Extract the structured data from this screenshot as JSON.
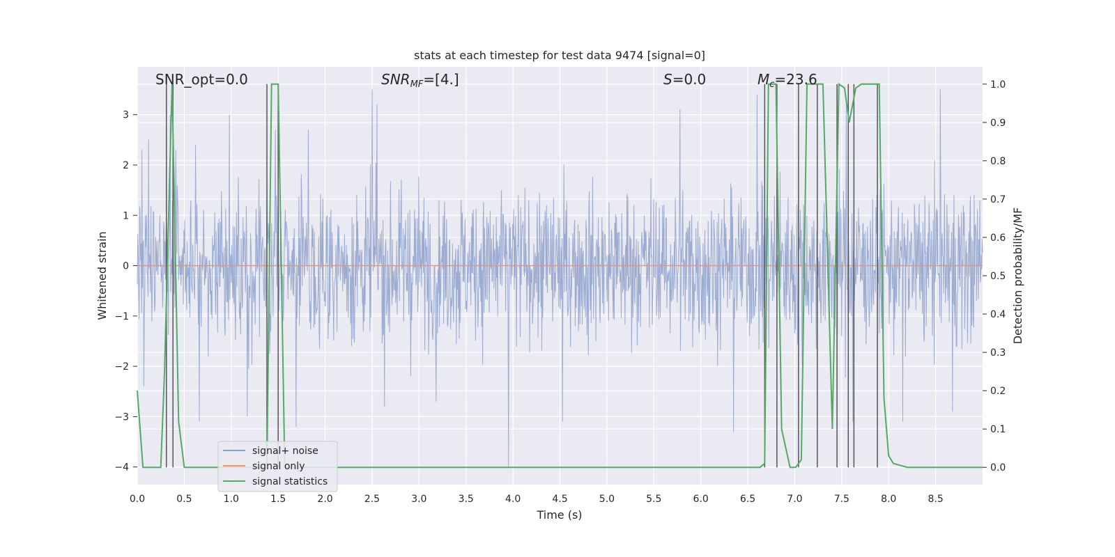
{
  "chart_data": {
    "type": "line",
    "title": "stats at each timestep for test data 9474 [signal=0]",
    "xlabel": "Time (s)",
    "ylabel_left": "Whitened strain",
    "ylabel_right": "Detection probability/MF",
    "xlim": [
      0.0,
      9.0
    ],
    "ylim_left": [
      -4.35,
      3.95
    ],
    "ylim_right": [
      -0.045,
      1.045
    ],
    "xticks": [
      "0.0",
      "0.5",
      "1.0",
      "1.5",
      "2.0",
      "2.5",
      "3.0",
      "3.5",
      "4.0",
      "4.5",
      "5.0",
      "5.5",
      "6.0",
      "6.5",
      "7.0",
      "7.5",
      "8.0",
      "8.5"
    ],
    "yticks_left": [
      "3",
      "2",
      "1",
      "0",
      "−1",
      "−2",
      "−3",
      "−4"
    ],
    "yticks_right": [
      "1.0",
      "0.9",
      "0.8",
      "0.7",
      "0.6",
      "0.5",
      "0.4",
      "0.3",
      "0.2",
      "0.1",
      "0.0"
    ],
    "grid": true,
    "legend_position": "lower-left",
    "annotations": {
      "snr_opt": "SNR_opt=0.0",
      "snr_mf_main": "SNR",
      "snr_mf_sub": "MF",
      "snr_mf_value": "=[4.]",
      "s_main": "S",
      "s_value": "=0.0",
      "mc_main": "M",
      "mc_sub": "c",
      "mc_value": "=23.6"
    },
    "series": [
      {
        "name": "signal+ noise",
        "color": "#8da0cb",
        "description_of_values": "whitened noise, roughly symmetric around 0, extremes between about -4.0 and 3.6",
        "sample_extremes": [
          {
            "x": 0.05,
            "y": 2.3
          },
          {
            "x": 0.07,
            "y": -2.4
          },
          {
            "x": 0.12,
            "y": 2.5
          },
          {
            "x": 0.35,
            "y": 3.0
          },
          {
            "x": 0.41,
            "y": 2.3
          },
          {
            "x": 0.62,
            "y": 2.4
          },
          {
            "x": 0.66,
            "y": -3.1
          },
          {
            "x": 0.98,
            "y": 3.0
          },
          {
            "x": 1.17,
            "y": -3.0
          },
          {
            "x": 1.47,
            "y": 2.7
          },
          {
            "x": 1.69,
            "y": -3.2
          },
          {
            "x": 1.82,
            "y": 2.7
          },
          {
            "x": 2.5,
            "y": 3.5
          },
          {
            "x": 2.55,
            "y": 3.2
          },
          {
            "x": 2.63,
            "y": -2.8
          },
          {
            "x": 3.18,
            "y": -2.7
          },
          {
            "x": 3.95,
            "y": -4.0
          },
          {
            "x": 4.53,
            "y": -3.1
          },
          {
            "x": 5.78,
            "y": 3.1
          },
          {
            "x": 6.35,
            "y": -3.3
          },
          {
            "x": 6.6,
            "y": 3.4
          },
          {
            "x": 7.55,
            "y": 3.3
          },
          {
            "x": 7.62,
            "y": -3.1
          },
          {
            "x": 8.15,
            "y": -3.1
          },
          {
            "x": 8.55,
            "y": 3.5
          },
          {
            "x": 8.68,
            "y": -2.9
          }
        ]
      },
      {
        "name": "signal only",
        "color": "#fc8d62",
        "x": [
          0.0,
          9.0
        ],
        "y": [
          0.0,
          0.0
        ]
      },
      {
        "name": "signal statistics",
        "color": "#55a868",
        "axis": "right",
        "x": [
          0.0,
          0.06,
          0.12,
          0.25,
          0.29,
          0.37,
          0.44,
          0.5,
          0.56,
          0.69,
          1.38,
          1.43,
          1.5,
          1.57,
          1.63,
          6.63,
          6.68,
          6.72,
          6.8,
          6.86,
          6.95,
          7.01,
          7.07,
          7.13,
          7.21,
          7.3,
          7.4,
          7.47,
          7.53,
          7.58,
          7.65,
          7.71,
          7.79,
          7.9,
          7.95,
          8.0,
          8.05,
          8.2,
          9.0
        ],
        "y": [
          0.2,
          0.0,
          0.0,
          0.0,
          0.25,
          1.0,
          0.12,
          0.0,
          0.0,
          0.0,
          0.0,
          1.0,
          1.0,
          0.0,
          0.0,
          0.0,
          0.01,
          1.0,
          1.0,
          0.1,
          0.0,
          0.0,
          0.02,
          1.0,
          1.0,
          1.0,
          0.1,
          1.0,
          0.99,
          0.9,
          0.99,
          1.0,
          1.0,
          1.0,
          0.18,
          0.03,
          0.01,
          0.0,
          0.0
        ]
      }
    ],
    "vertical_markers": {
      "color": "#555555",
      "x": [
        0.31,
        0.38,
        1.38,
        1.5,
        6.68,
        6.81,
        7.04,
        7.24,
        7.45,
        7.57,
        7.63,
        7.88
      ]
    }
  }
}
